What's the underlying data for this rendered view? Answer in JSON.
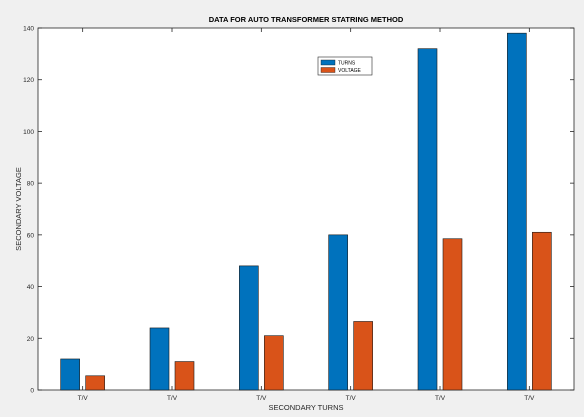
{
  "chart_data": {
    "type": "bar",
    "title": "DATA FOR AUTO TRANSFORMER STATRING METHOD",
    "xlabel": "SECONDARY TURNS",
    "ylabel": "SECONDARY VOLTAGE",
    "categories": [
      "T/V",
      "T/V",
      "T/V",
      "T/V",
      "T/V",
      "T/V"
    ],
    "series": [
      {
        "name": "TURNS",
        "values": [
          12,
          24,
          48,
          60,
          132,
          138
        ],
        "color": "#0072bd"
      },
      {
        "name": "VOLTAGE",
        "values": [
          5.5,
          11,
          21,
          26.5,
          58.5,
          61
        ],
        "color": "#d95319"
      }
    ],
    "ylim": [
      0,
      140
    ],
    "yticks": [
      "0",
      "20",
      "40",
      "60",
      "80",
      "100",
      "120",
      "140"
    ],
    "grid": false,
    "legend_position": "top-right"
  },
  "colors": {
    "background": "#f0f0f0",
    "axes_background": "#ffffff",
    "axis": "#262626"
  }
}
